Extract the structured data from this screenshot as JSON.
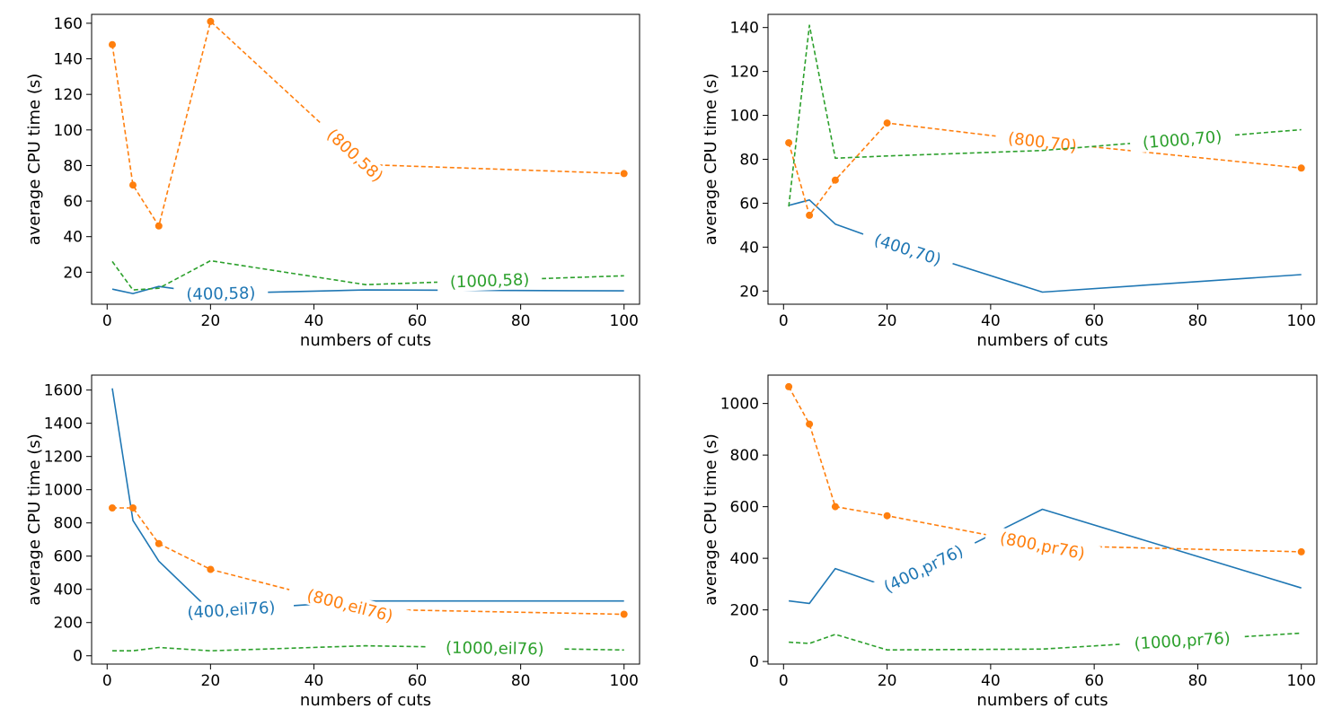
{
  "chart_data": [
    {
      "type": "line",
      "xlabel": "numbers of cuts",
      "ylabel": "average CPU time (s)",
      "xlim": [
        -3,
        103
      ],
      "ylim": [
        2,
        165
      ],
      "xticks": [
        0,
        20,
        40,
        60,
        80,
        100
      ],
      "yticks": [
        20,
        40,
        60,
        80,
        100,
        120,
        140,
        160
      ],
      "x": [
        1,
        5,
        10,
        20,
        50,
        100
      ],
      "series": [
        {
          "name": "(400,58)",
          "color": "#1f77b4",
          "style": "solid",
          "marker": false,
          "values": [
            10.5,
            8,
            12,
            8,
            10,
            9.5
          ],
          "label_at": 22
        },
        {
          "name": "(800,58)",
          "color": "#ff7f0e",
          "style": "dashed",
          "marker": true,
          "values": [
            148,
            69,
            46,
            161,
            80.5,
            75.5
          ],
          "label_at": 48
        },
        {
          "name": "(1000,58)",
          "color": "#2ca02c",
          "style": "dashed",
          "marker": false,
          "values": [
            26,
            10,
            11,
            26.5,
            13,
            18
          ],
          "label_at": 74
        }
      ]
    },
    {
      "type": "line",
      "xlabel": "numbers of cuts",
      "ylabel": "average CPU time (s)",
      "xlim": [
        -3,
        103
      ],
      "ylim": [
        14,
        146
      ],
      "xticks": [
        0,
        20,
        40,
        60,
        80,
        100
      ],
      "yticks": [
        20,
        40,
        60,
        80,
        100,
        120,
        140
      ],
      "x": [
        1,
        5,
        10,
        20,
        50,
        100
      ],
      "series": [
        {
          "name": "(400,70)",
          "color": "#1f77b4",
          "style": "solid",
          "marker": false,
          "values": [
            59,
            61.5,
            50.5,
            42,
            19.5,
            27.5
          ],
          "label_at": 24
        },
        {
          "name": "(800,70)",
          "color": "#ff7f0e",
          "style": "dashed",
          "marker": true,
          "values": [
            87.5,
            54.5,
            70.5,
            96.5,
            88,
            76
          ],
          "label_at": 50
        },
        {
          "name": "(1000,70)",
          "color": "#2ca02c",
          "style": "dashed",
          "marker": false,
          "values": [
            58.5,
            141,
            80.5,
            81.5,
            84,
            93.5
          ],
          "label_at": 77
        }
      ]
    },
    {
      "type": "line",
      "xlabel": "numbers of cuts",
      "ylabel": "average CPU time (s)",
      "xlim": [
        -3,
        103
      ],
      "ylim": [
        -50,
        1690
      ],
      "xticks": [
        0,
        20,
        40,
        60,
        80,
        100
      ],
      "yticks": [
        0,
        200,
        400,
        600,
        800,
        1000,
        1200,
        1400,
        1600
      ],
      "x": [
        1,
        5,
        10,
        20,
        50,
        100
      ],
      "series": [
        {
          "name": "(400,eil76)",
          "color": "#1f77b4",
          "style": "solid",
          "marker": false,
          "values": [
            1610,
            815,
            570,
            270,
            330,
            330
          ],
          "label_at": 24
        },
        {
          "name": "(800,eil76)",
          "color": "#ff7f0e",
          "style": "dashed",
          "marker": true,
          "values": [
            890,
            890,
            675,
            520,
            280,
            250
          ],
          "label_at": 47
        },
        {
          "name": "(1000,eil76)",
          "color": "#2ca02c",
          "style": "dashed",
          "marker": false,
          "values": [
            30,
            30,
            50,
            30,
            60,
            35
          ],
          "label_at": 75
        }
      ]
    },
    {
      "type": "line",
      "xlabel": "numbers of cuts",
      "ylabel": "average CPU time (s)",
      "xlim": [
        -3,
        103
      ],
      "ylim": [
        -10,
        1110
      ],
      "xticks": [
        0,
        20,
        40,
        60,
        80,
        100
      ],
      "yticks": [
        0,
        200,
        400,
        600,
        800,
        1000
      ],
      "x": [
        1,
        5,
        10,
        20,
        50,
        100
      ],
      "series": [
        {
          "name": "(400,pr76)",
          "color": "#1f77b4",
          "style": "solid",
          "marker": false,
          "values": [
            235,
            225,
            360,
            290,
            590,
            285
          ],
          "label_at": 27
        },
        {
          "name": "(800,pr76)",
          "color": "#ff7f0e",
          "style": "dashed",
          "marker": true,
          "values": [
            1065,
            920,
            600,
            565,
            450,
            425
          ],
          "label_at": 50
        },
        {
          "name": "(1000,pr76)",
          "color": "#2ca02c",
          "style": "dashed",
          "marker": false,
          "values": [
            75,
            70,
            105,
            45,
            48,
            110
          ],
          "label_at": 77
        }
      ]
    }
  ]
}
